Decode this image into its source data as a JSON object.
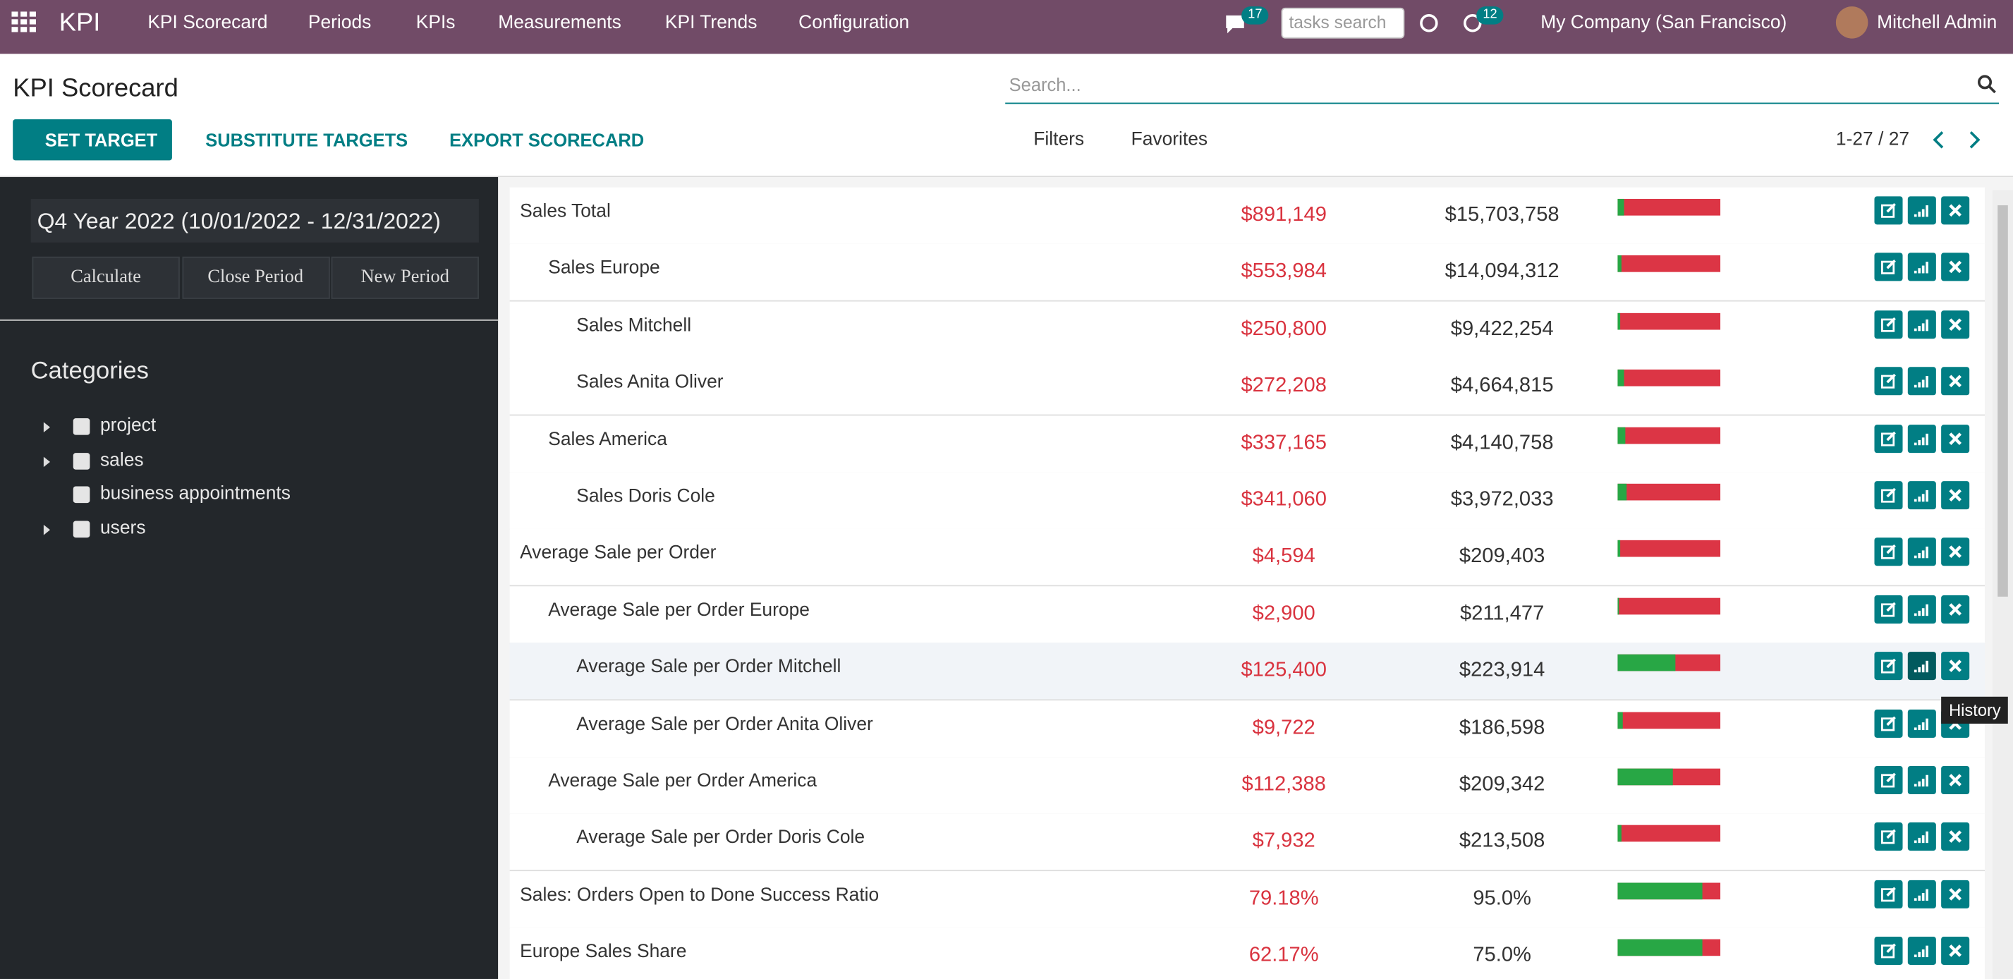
{
  "navbar": {
    "app": "KPI",
    "menu": [
      "KPI Scorecard",
      "Periods",
      "KPIs",
      "Measurements",
      "KPI Trends",
      "Configuration"
    ],
    "messages_badge": "17",
    "tasks_placeholder": "tasks search",
    "activities_badge": "12",
    "company": "My Company (San Francisco)",
    "user": "Mitchell Admin"
  },
  "control_panel": {
    "title": "KPI Scorecard",
    "buttons": [
      "SET TARGET",
      "SUBSTITUTE TARGETS",
      "EXPORT SCORECARD"
    ],
    "search_placeholder": "Search...",
    "filters": "Filters",
    "favorites": "Favorites",
    "pager": "1-27 / 27"
  },
  "sidebar": {
    "period": "Q4 Year 2022 (10/01/2022 - 12/31/2022)",
    "actions": [
      "Calculate",
      "Close Period",
      "New Period"
    ],
    "categories_title": "Categories",
    "categories": [
      {
        "label": "project",
        "expandable": true
      },
      {
        "label": "sales",
        "expandable": true
      },
      {
        "label": "business appointments",
        "expandable": false
      },
      {
        "label": "users",
        "expandable": true
      }
    ]
  },
  "table": {
    "rows": [
      {
        "name": "Sales Total",
        "level": 0,
        "actual": "$891,149",
        "target": "$15,703,758",
        "progress": 6
      },
      {
        "name": "Sales Europe",
        "level": 1,
        "actual": "$553,984",
        "target": "$14,094,312",
        "progress": 4
      },
      {
        "name": "Sales Mitchell",
        "level": 2,
        "actual": "$250,800",
        "target": "$9,422,254",
        "progress": 3
      },
      {
        "name": "Sales Anita Oliver",
        "level": 2,
        "actual": "$272,208",
        "target": "$4,664,815",
        "progress": 6
      },
      {
        "name": "Sales America",
        "level": 1,
        "actual": "$337,165",
        "target": "$4,140,758",
        "progress": 8
      },
      {
        "name": "Sales Doris Cole",
        "level": 2,
        "actual": "$341,060",
        "target": "$3,972,033",
        "progress": 9
      },
      {
        "name": "Average Sale per Order",
        "level": 0,
        "actual": "$4,594",
        "target": "$209,403",
        "progress": 2
      },
      {
        "name": "Average Sale per Order Europe",
        "level": 1,
        "actual": "$2,900",
        "target": "$211,477",
        "progress": 1
      },
      {
        "name": "Average Sale per Order Mitchell",
        "level": 2,
        "actual": "$125,400",
        "target": "$223,914",
        "progress": 56
      },
      {
        "name": "Average Sale per Order Anita Oliver",
        "level": 2,
        "actual": "$9,722",
        "target": "$186,598",
        "progress": 5
      },
      {
        "name": "Average Sale per Order America",
        "level": 1,
        "actual": "$112,388",
        "target": "$209,342",
        "progress": 54
      },
      {
        "name": "Average Sale per Order Doris Cole",
        "level": 2,
        "actual": "$7,932",
        "target": "$213,508",
        "progress": 4
      },
      {
        "name": "Sales: Orders Open to Done Success Ratio",
        "level": 0,
        "actual": "79.18%",
        "target": "95.0%",
        "progress": 83
      },
      {
        "name": "Europe Sales Share",
        "level": 0,
        "actual": "62.17%",
        "target": "75.0%",
        "progress": 83
      }
    ],
    "highlighted_row": 8,
    "tooltip": "History"
  }
}
